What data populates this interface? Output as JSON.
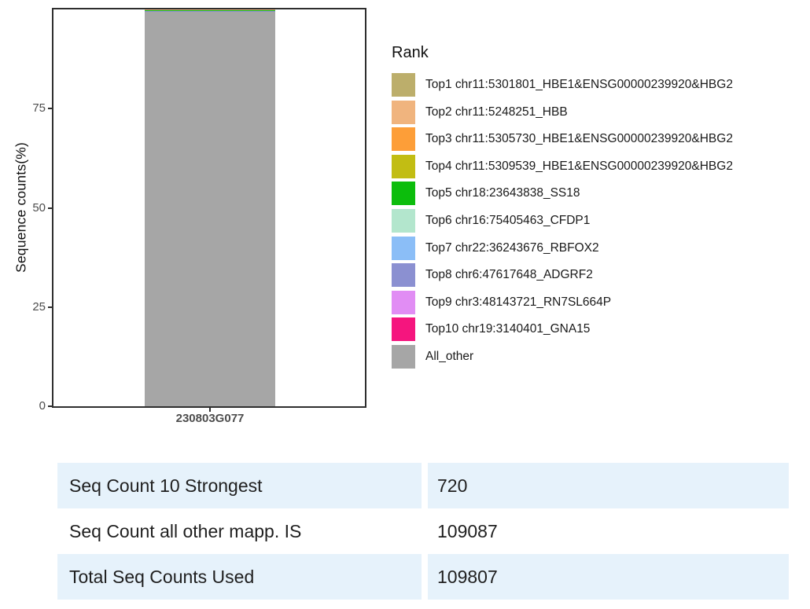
{
  "chart_data": {
    "type": "bar",
    "stacked": true,
    "categories": [
      "230803G077"
    ],
    "xlabel": "",
    "ylabel": "Sequence counts(%)",
    "ylim": [
      0,
      100
    ],
    "yticks": [
      0,
      25,
      50,
      75
    ],
    "legend_title": "Rank",
    "series": [
      {
        "name": "Top1 chr11:5301801_HBE1&ENSG00000239920&HBG2",
        "color": "#bcae6b",
        "percent": 0.066
      },
      {
        "name": "Top2 chr11:5248251_HBB",
        "color": "#f0b47e",
        "percent": 0.066
      },
      {
        "name": "Top3 chr11:5305730_HBE1&ENSG00000239920&HBG2",
        "color": "#fd9e38",
        "percent": 0.066
      },
      {
        "name": "Top4 chr11:5309539_HBE1&ENSG00000239920&HBG2",
        "color": "#c2bd13",
        "percent": 0.066
      },
      {
        "name": "Top5 chr18:23643838_SS18",
        "color": "#0cbd0c",
        "percent": 0.066
      },
      {
        "name": "Top6 chr16:75405463_CFDP1",
        "color": "#b3e6cd",
        "percent": 0.066
      },
      {
        "name": "Top7 chr22:36243676_RBFOX2",
        "color": "#8bbef7",
        "percent": 0.066
      },
      {
        "name": "Top8 chr6:47617648_ADGRF2",
        "color": "#8b90d1",
        "percent": 0.066
      },
      {
        "name": "Top9 chr3:48143721_RN7SL664P",
        "color": "#e18df4",
        "percent": 0.066
      },
      {
        "name": "Top10 chr19:3140401_GNA15",
        "color": "#f5157e",
        "percent": 0.066
      },
      {
        "name": "All_other",
        "color": "#a6a6a6",
        "percent": 99.34
      }
    ],
    "counts": {
      "top10_total": 720,
      "all_other": 109087,
      "total": 109807
    }
  },
  "summary_table": {
    "row_highlight_color": "#e6f2fb",
    "rows": [
      {
        "label": "Seq Count 10 Strongest",
        "value": "720"
      },
      {
        "label": "Seq Count all other mapp. IS",
        "value": "109087"
      },
      {
        "label": "Total Seq Counts Used",
        "value": "109807"
      }
    ]
  }
}
